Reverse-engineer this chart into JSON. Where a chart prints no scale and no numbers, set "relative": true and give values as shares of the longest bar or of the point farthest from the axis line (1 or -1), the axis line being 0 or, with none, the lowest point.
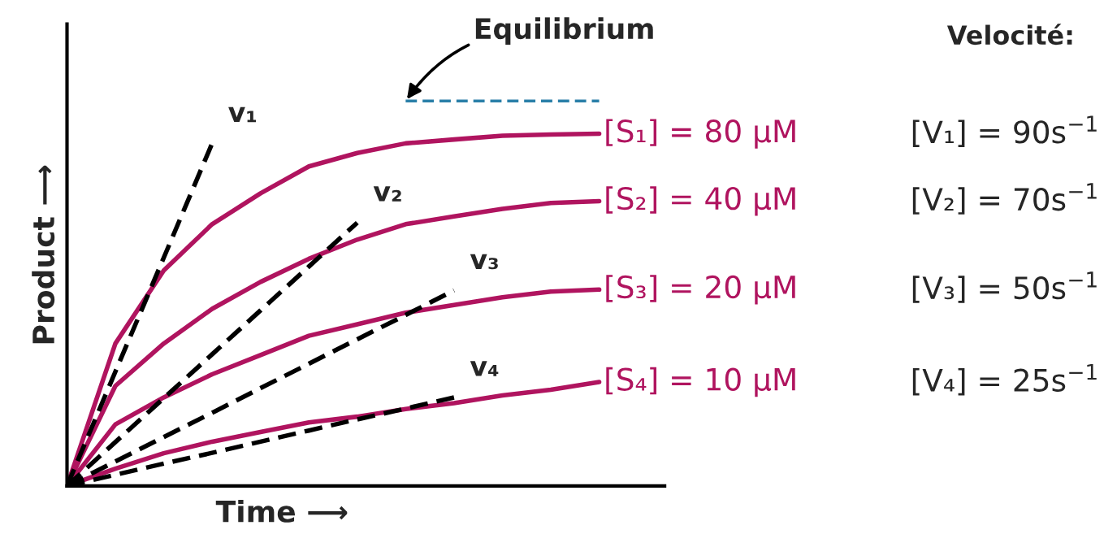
{
  "chart_data": {
    "type": "line",
    "relative": true,
    "xlabel": "Time ⟶",
    "ylabel": "Product ⟶",
    "legend": false,
    "categories": [
      null,
      null,
      null,
      null,
      null,
      null,
      null,
      null,
      null,
      null,
      null,
      null
    ],
    "series": [
      {
        "name": "[S₁] = 80 μM",
        "color": "#b0145f",
        "line_style": "solid",
        "values": [
          0,
          0.37,
          0.56,
          0.68,
          0.76,
          0.83,
          0.865,
          0.89,
          0.9,
          0.91,
          0.913,
          0.915
        ]
      },
      {
        "name": "[S₂] = 40 μM",
        "color": "#b0145f",
        "line_style": "solid",
        "values": [
          0,
          0.26,
          0.37,
          0.46,
          0.53,
          0.59,
          0.64,
          0.68,
          0.7,
          0.72,
          0.735,
          0.74
        ]
      },
      {
        "name": "[S₃] = 20 μM",
        "color": "#b0145f",
        "line_style": "solid",
        "values": [
          0,
          0.16,
          0.23,
          0.29,
          0.34,
          0.39,
          0.42,
          0.45,
          0.47,
          0.49,
          0.505,
          0.51
        ]
      },
      {
        "name": "[S₄] = 10 μM",
        "color": "#b0145f",
        "line_style": "solid",
        "values": [
          0,
          0.045,
          0.085,
          0.115,
          0.14,
          0.165,
          0.18,
          0.2,
          0.215,
          0.235,
          0.25,
          0.27
        ]
      },
      {
        "name": "v₁",
        "color": "#000000",
        "line_style": "dashed",
        "values": [
          0,
          0.297,
          0.593,
          0.89,
          null,
          null,
          null,
          null,
          null,
          null,
          null,
          null
        ]
      },
      {
        "name": "v₂",
        "color": "#000000",
        "line_style": "dashed",
        "values": [
          0,
          0.114,
          0.228,
          0.342,
          0.456,
          0.57,
          0.684,
          null,
          null,
          null,
          null,
          null
        ]
      },
      {
        "name": "v₃",
        "color": "#000000",
        "line_style": "dashed",
        "values": [
          0,
          0.0635,
          0.127,
          0.19,
          0.254,
          0.3175,
          0.381,
          0.444,
          0.508,
          null,
          null,
          null
        ]
      },
      {
        "name": "v₄",
        "color": "#000000",
        "line_style": "dashed",
        "values": [
          0,
          0.029,
          0.058,
          0.086,
          0.115,
          0.144,
          0.173,
          0.201,
          0.23,
          null,
          null,
          null
        ]
      },
      {
        "color": "#2a7fa8",
        "line_style": "dashed",
        "values": [
          null,
          null,
          null,
          null,
          null,
          null,
          null,
          1.0,
          1.0,
          1.0,
          1.0,
          1.0
        ]
      }
    ],
    "annotations": [
      "Equilibrium",
      "Velocité:",
      "[V₁] = 90s$^{−1}$",
      "[V₂] = 70s$^{−1}$",
      "[V₃] = 50s$^{−1}$",
      "[V₄] = 25s$^{−1}$"
    ]
  }
}
